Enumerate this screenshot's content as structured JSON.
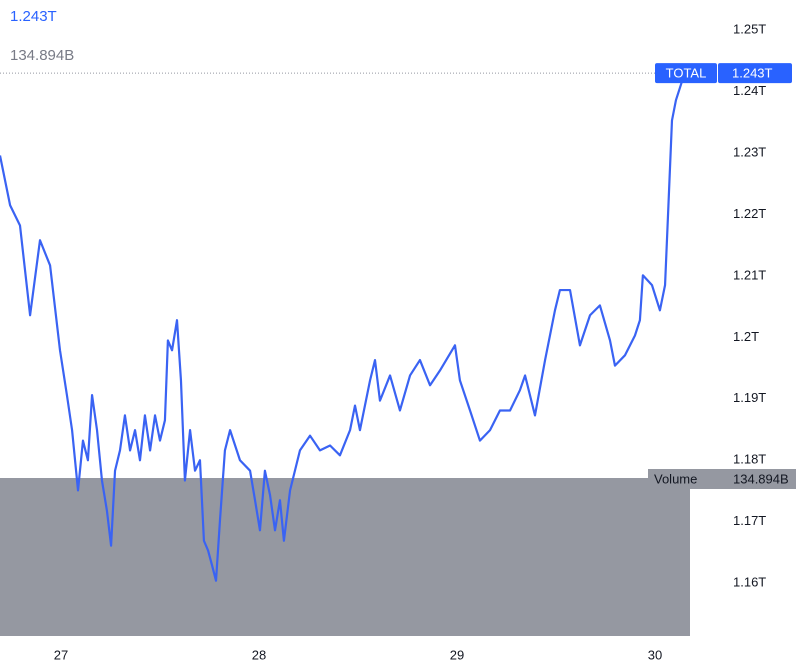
{
  "chart_data": {
    "type": "line",
    "header_value": {
      "value": 1.243,
      "label": "1.243T"
    },
    "series": [
      {
        "name": "TOTAL",
        "color": "#3a63f3",
        "x": [
          26.692,
          26.743,
          26.793,
          26.844,
          26.894,
          26.945,
          26.995,
          27.03,
          27.056,
          27.086,
          27.111,
          27.136,
          27.157,
          27.182,
          27.207,
          27.232,
          27.253,
          27.273,
          27.298,
          27.323,
          27.349,
          27.374,
          27.399,
          27.424,
          27.45,
          27.475,
          27.5,
          27.525,
          27.54,
          27.561,
          27.586,
          27.606,
          27.626,
          27.652,
          27.677,
          27.702,
          27.722,
          27.743,
          27.763,
          27.783,
          27.803,
          27.828,
          27.854,
          27.904,
          27.955,
          27.98,
          28.005,
          28.03,
          28.056,
          28.081,
          28.106,
          28.126,
          28.157,
          28.207,
          28.258,
          28.308,
          28.359,
          28.409,
          28.46,
          28.485,
          28.51,
          28.561,
          28.586,
          28.611,
          28.662,
          28.712,
          28.763,
          28.813,
          28.864,
          28.914,
          28.99,
          29.015,
          29.066,
          29.116,
          29.167,
          29.217,
          29.268,
          29.318,
          29.344,
          29.394,
          29.445,
          29.495,
          29.52,
          29.571,
          29.621,
          29.672,
          29.722,
          29.773,
          29.798,
          29.849,
          29.899,
          29.924,
          29.939,
          29.985,
          30.025,
          30.051,
          30.066,
          30.086,
          30.106,
          30.147
        ],
        "values": [
          1.2296,
          1.2215,
          1.2182,
          1.2036,
          1.2158,
          1.2117,
          1.1979,
          1.1906,
          1.1849,
          1.1751,
          1.1832,
          1.18,
          1.1906,
          1.1849,
          1.1767,
          1.1718,
          1.1661,
          1.1783,
          1.1816,
          1.1873,
          1.1816,
          1.1849,
          1.18,
          1.1873,
          1.1816,
          1.1873,
          1.1832,
          1.1865,
          1.1995,
          1.1979,
          1.2028,
          1.193,
          1.1767,
          1.1849,
          1.1783,
          1.18,
          1.1669,
          1.1653,
          1.1629,
          1.1604,
          1.1702,
          1.1816,
          1.1849,
          1.18,
          1.1783,
          1.1735,
          1.1686,
          1.1783,
          1.1743,
          1.1686,
          1.1735,
          1.1669,
          1.1751,
          1.1816,
          1.184,
          1.1816,
          1.1824,
          1.1808,
          1.1849,
          1.1889,
          1.1849,
          1.193,
          1.1963,
          1.1897,
          1.1938,
          1.1881,
          1.1938,
          1.1963,
          1.1922,
          1.1946,
          1.1987,
          1.193,
          1.1881,
          1.1832,
          1.1849,
          1.1881,
          1.1881,
          1.1914,
          1.1938,
          1.1873,
          1.1963,
          1.2044,
          1.2077,
          1.2077,
          1.1987,
          1.2036,
          1.2052,
          1.1995,
          1.1954,
          1.1971,
          1.2003,
          1.2028,
          1.2101,
          1.2085,
          1.2044,
          1.2085,
          1.2199,
          1.2353,
          1.2386,
          1.2427
        ],
        "last": {
          "value": 1.243,
          "label": "1.243T"
        }
      }
    ],
    "volume": {
      "name": "Volume",
      "value": 134.894,
      "label": "134.894B",
      "color": "#9598a1"
    },
    "xlim": [
      26.692,
      30.177
    ],
    "xticks": [
      27,
      28,
      29,
      30
    ],
    "ylim": [
      1.1514,
      1.2549
    ],
    "yticks": [
      {
        "value": 1.25,
        "label": "1.25T"
      },
      {
        "value": 1.24,
        "label": "1.24T"
      },
      {
        "value": 1.23,
        "label": "1.23T"
      },
      {
        "value": 1.22,
        "label": "1.22T"
      },
      {
        "value": 1.21,
        "label": "1.21T"
      },
      {
        "value": 1.2,
        "label": "1.2T"
      },
      {
        "value": 1.19,
        "label": "1.19T"
      },
      {
        "value": 1.18,
        "label": "1.18T"
      },
      {
        "value": 1.17,
        "label": "1.17T"
      },
      {
        "value": 1.16,
        "label": "1.16T"
      }
    ]
  }
}
